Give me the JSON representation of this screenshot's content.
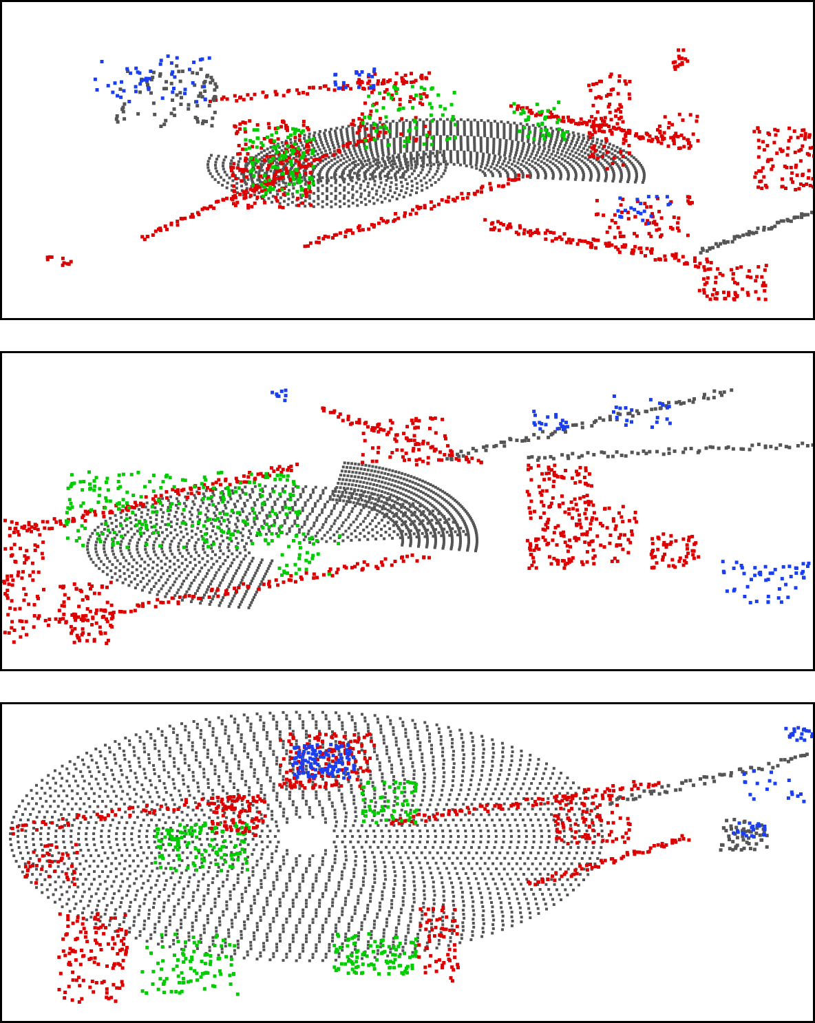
{
  "figure": {
    "panel_count": 3,
    "panels": [
      {
        "id": "top",
        "description_colors": [
          "gray",
          "red",
          "green",
          "blue"
        ]
      },
      {
        "id": "middle",
        "description_colors": [
          "gray",
          "red",
          "green",
          "blue"
        ]
      },
      {
        "id": "bottom",
        "description_colors": [
          "gray",
          "red",
          "green",
          "blue"
        ]
      }
    ]
  },
  "colors": {
    "gray": "#555555",
    "red": "#dd0000",
    "green": "#00cc00",
    "blue": "#1a3ff0",
    "frame": "#000000",
    "background": "#ffffff"
  }
}
